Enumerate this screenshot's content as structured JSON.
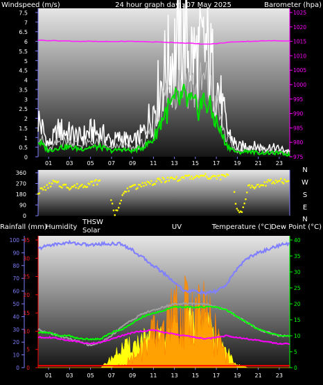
{
  "chart_data": [
    {
      "type": "line",
      "title": "24 hour graph day : 07 May 2025",
      "ylabel": "Windspeed (m/s)",
      "ylabel_right": "Barometer (hpa)",
      "x_ticks": [
        "01",
        "03",
        "05",
        "07",
        "09",
        "11",
        "13",
        "15",
        "17",
        "19",
        "21",
        "23"
      ],
      "y_ticks": [
        "0",
        "0.5",
        "1",
        "1.5",
        "2",
        "2.5",
        "3",
        "3.5",
        "4",
        "4.5",
        "5",
        "5.5",
        "6",
        "6.5",
        "7",
        "7.5"
      ],
      "ylim": [
        0,
        7.5
      ],
      "y2_ticks": [
        "975",
        "980",
        "985",
        "990",
        "995",
        "1000",
        "1005",
        "1010",
        "1015",
        "1020",
        "1025"
      ],
      "y2lim": [
        975,
        1025
      ],
      "x": [
        0,
        1,
        2,
        3,
        4,
        5,
        6,
        7,
        8,
        9,
        10,
        11,
        12,
        13,
        14,
        15,
        16,
        17,
        18,
        19,
        20,
        21,
        22,
        23,
        24
      ],
      "series": [
        {
          "color": "#ffffff",
          "values": [
            2.0,
            0.6,
            1.4,
            1.2,
            1.0,
            1.3,
            1.2,
            0.8,
            1.0,
            0.7,
            1.2,
            2.5,
            4.4,
            5.5,
            6.0,
            5.0,
            5.6,
            4.0,
            1.4,
            0.5,
            0.6,
            0.5,
            0.5,
            0.4,
            0.3
          ]
        },
        {
          "color": "#c0c0c0",
          "values": [
            1.2,
            0.3,
            0.8,
            0.8,
            0.6,
            0.7,
            0.7,
            0.4,
            0.6,
            0.4,
            0.7,
            1.4,
            3.0,
            3.8,
            4.2,
            3.4,
            3.9,
            2.6,
            0.9,
            0.3,
            0.4,
            0.3,
            0.3,
            0.2,
            0.2
          ]
        },
        {
          "color": "#00e000",
          "values": [
            0.8,
            0.3,
            0.5,
            0.5,
            0.4,
            0.5,
            0.5,
            0.3,
            0.4,
            0.3,
            0.5,
            0.9,
            2.2,
            2.8,
            3.0,
            2.5,
            2.9,
            1.8,
            0.6,
            0.2,
            0.3,
            0.2,
            0.2,
            0.2,
            0.1
          ]
        },
        {
          "color": "#ff20ff",
          "axis": "right",
          "values": [
            1015.4,
            1015.3,
            1015.2,
            1015.1,
            1015.0,
            1015.0,
            1014.9,
            1014.9,
            1015.0,
            1015.0,
            1014.9,
            1014.8,
            1014.7,
            1014.6,
            1014.4,
            1014.2,
            1014.0,
            1014.2,
            1014.6,
            1014.9,
            1015.0,
            1015.1,
            1015.2,
            1015.2,
            1015.2
          ]
        }
      ]
    },
    {
      "type": "scatter",
      "y_ticks": [
        "0",
        "90",
        "180",
        "270",
        "360"
      ],
      "ylim": [
        0,
        360
      ],
      "right_labels": [
        "N",
        "W",
        "S",
        "E",
        "N"
      ],
      "x": [
        0,
        1,
        1.5,
        2,
        3,
        4,
        5,
        6,
        6.5,
        7.3,
        7.5,
        7.8,
        8,
        8.5,
        9,
        10,
        11,
        12,
        13,
        14,
        15,
        16,
        17,
        18,
        18.5,
        19,
        19.5,
        20,
        21,
        22,
        23,
        24
      ],
      "series": [
        {
          "color": "#ffff00",
          "values": [
            200,
            250,
            280,
            260,
            240,
            250,
            270,
            290,
            280,
            10,
            40,
            120,
            170,
            210,
            230,
            270,
            280,
            300,
            310,
            320,
            320,
            330,
            320,
            330,
            330,
            20,
            40,
            240,
            250,
            280,
            290,
            290
          ]
        }
      ]
    },
    {
      "type": "area",
      "ylabel_labels": [
        "Rainfall (mm)",
        "Humidity",
        "THSW",
        "Solar",
        "UV",
        "Temperature (°C)",
        "Dew Point (°C)"
      ],
      "x_ticks": [
        "01",
        "03",
        "05",
        "07",
        "09",
        "11",
        "13",
        "15",
        "17",
        "19",
        "21",
        "23"
      ],
      "humidity_ticks": [
        "0",
        "10",
        "20",
        "30",
        "40",
        "50",
        "60",
        "70",
        "80",
        "90",
        "100"
      ],
      "rain_ticks": [
        "0",
        "5",
        "10",
        "15",
        "20",
        "25",
        "30",
        "35"
      ],
      "temp_ticks": [
        "0",
        "5",
        "10",
        "15",
        "20",
        "25",
        "30",
        "35",
        "40"
      ],
      "x": [
        0,
        1,
        2,
        3,
        4,
        5,
        6,
        7,
        8,
        9,
        10,
        11,
        12,
        13,
        14,
        15,
        16,
        17,
        18,
        19,
        20,
        21,
        22,
        23,
        24
      ],
      "series": [
        {
          "color": "#8080ff",
          "values": [
            93,
            96,
            97,
            98,
            97,
            96,
            97,
            97,
            97,
            92,
            86,
            80,
            74,
            67,
            60,
            60,
            58,
            60,
            65,
            78,
            86,
            90,
            93,
            96,
            97
          ]
        },
        {
          "color": "#a0a0a0",
          "values": [
            12,
            11,
            10,
            9,
            8,
            7,
            8,
            10,
            13,
            15,
            17,
            18,
            19,
            20,
            20,
            20,
            20,
            19,
            18,
            16,
            14,
            12,
            11,
            10,
            10
          ]
        },
        {
          "color": "#00ff00",
          "values": [
            11,
            11,
            10,
            10,
            9,
            9,
            9,
            11,
            12,
            14,
            16,
            17,
            18,
            19,
            19,
            19,
            19,
            19,
            18,
            16,
            14,
            12,
            11,
            10,
            10
          ]
        },
        {
          "color": "#ff00ff",
          "values": [
            9.5,
            9.5,
            9.0,
            8.5,
            8.0,
            7.5,
            8.0,
            9.0,
            10.0,
            11.0,
            11.5,
            11.8,
            11.0,
            10.5,
            10.0,
            9.5,
            9.0,
            9.5,
            10.0,
            9.5,
            9.0,
            8.5,
            8.0,
            7.5,
            7.5
          ]
        },
        {
          "color": "#ffff00",
          "values": [
            0,
            0,
            0,
            0,
            0,
            0,
            0,
            3,
            6,
            7,
            9,
            8,
            10,
            12,
            13,
            15,
            14,
            9,
            5,
            1,
            0,
            0,
            0,
            0,
            0
          ]
        },
        {
          "color": "#ff8000",
          "values": [
            0,
            0,
            0,
            0,
            0,
            0,
            0,
            0,
            1,
            3,
            6,
            10,
            12,
            16,
            17,
            18,
            16,
            10,
            3,
            0,
            0,
            0,
            0,
            0,
            0
          ]
        },
        {
          "color": "#ff0000",
          "values": [
            0.6,
            0.6,
            0.6,
            0.6,
            0.6,
            0.6,
            0.6,
            0.6,
            0.6,
            0.6,
            0.6,
            0.6,
            0.6,
            0.6,
            0.6,
            0.6,
            0.6,
            0.6,
            0.6,
            0.6,
            0.6,
            0.6,
            0.6,
            0.6,
            0.6
          ]
        }
      ]
    }
  ]
}
